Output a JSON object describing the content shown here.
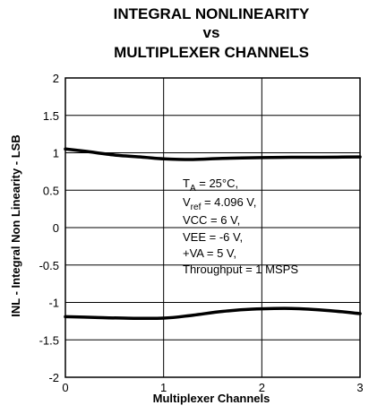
{
  "chart_data": {
    "type": "line",
    "title_lines": [
      "INTEGRAL NONLINEARITY",
      "vs",
      "MULTIPLEXER CHANNELS"
    ],
    "xlabel": "Multiplexer Channels",
    "ylabel": "INL - Integral Non Linearity - LSB",
    "xlim": [
      0,
      3
    ],
    "ylim": [
      -2,
      2
    ],
    "xticks": [
      0,
      1,
      2,
      3
    ],
    "yticks": [
      2,
      1.5,
      1,
      0.5,
      0,
      -0.5,
      -1,
      -1.5,
      -2
    ],
    "grid": true,
    "series": [
      {
        "x": [
          0,
          0.2,
          0.5,
          0.8,
          1.0,
          1.3,
          1.6,
          2.0,
          2.3,
          2.6,
          3.0
        ],
        "values": [
          1.05,
          1.02,
          0.97,
          0.94,
          0.92,
          0.91,
          0.925,
          0.935,
          0.94,
          0.94,
          0.945
        ]
      },
      {
        "x": [
          0,
          0.3,
          0.6,
          1.0,
          1.3,
          1.6,
          1.9,
          2.3,
          2.7,
          3.0
        ],
        "values": [
          -1.19,
          -1.2,
          -1.21,
          -1.21,
          -1.17,
          -1.12,
          -1.09,
          -1.08,
          -1.11,
          -1.15
        ]
      }
    ],
    "annotation": {
      "ta_main": "T",
      "ta_sub": "A",
      "ta_rest": " = 25°C,",
      "vref_main": "V",
      "vref_sub": "ref",
      "vref_rest": " = 4.096 V,",
      "line3": "VCC = 6 V,",
      "line4": "VEE = -6 V,",
      "line5": "+VA = 5 V,",
      "line6": "Throughput = 1 MSPS"
    }
  }
}
